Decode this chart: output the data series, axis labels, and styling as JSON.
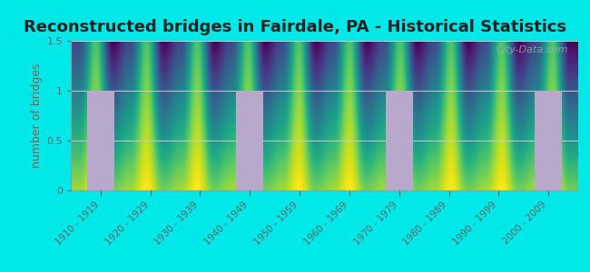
{
  "title": "Reconstructed bridges in Fairdale, PA - Historical Statistics",
  "ylabel": "number of bridges",
  "categories": [
    "1910 - 1919",
    "1920 - 1929",
    "1930 - 1939",
    "1940 - 1949",
    "1950 - 1959",
    "1960 - 1969",
    "1970 - 1979",
    "1980 - 1989",
    "1990 - 1999",
    "2000 - 2009"
  ],
  "values": [
    1,
    0,
    0,
    1,
    0,
    0,
    1,
    0,
    0,
    1
  ],
  "bar_color": "#b8a8cc",
  "background_outer": "#00e8e8",
  "background_inner_top": "#e8f5e0",
  "background_inner_bottom": "#f5f8f0",
  "grid_color": "#cccccc",
  "ylim": [
    0,
    1.5
  ],
  "yticks": [
    0,
    0.5,
    1,
    1.5
  ],
  "title_fontsize": 13,
  "axis_label_fontsize": 9,
  "tick_fontsize": 7.5,
  "ylabel_color": "#8B6050",
  "title_color": "#222222",
  "tick_color": "#666666",
  "watermark": "City-Data.com"
}
